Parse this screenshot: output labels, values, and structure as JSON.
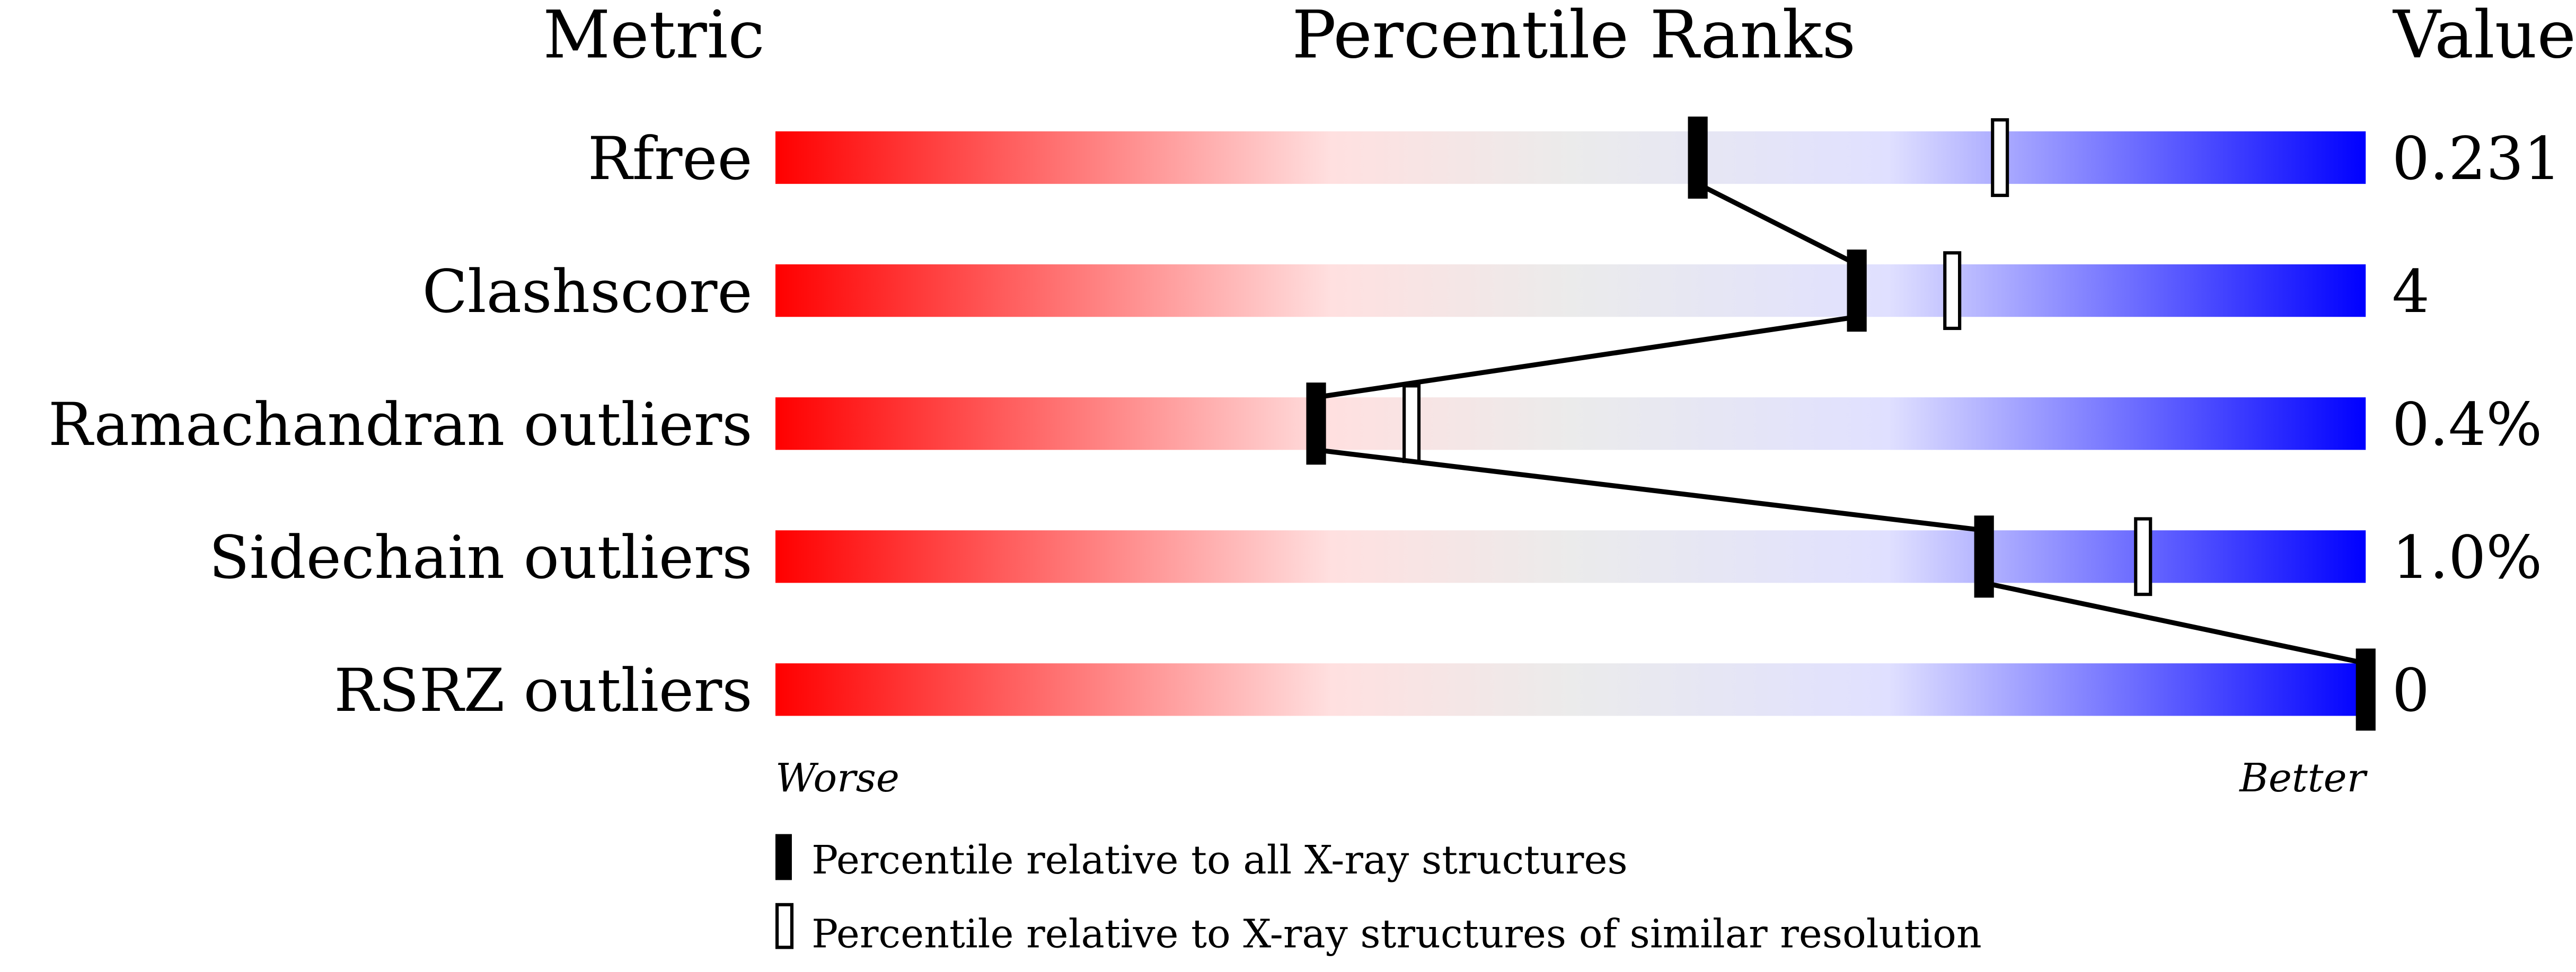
{
  "chart_data": {
    "type": "bar",
    "headers": {
      "metric": "Metric",
      "ranks": "Percentile Ranks",
      "value": "Value"
    },
    "xlim": [
      0,
      100
    ],
    "rows": [
      {
        "metric": "Rfree",
        "value": "0.231",
        "percentile_all": 58,
        "percentile_similar": 77
      },
      {
        "metric": "Clashscore",
        "value": "4",
        "percentile_all": 68,
        "percentile_similar": 74
      },
      {
        "metric": "Ramachandran outliers",
        "value": "0.4%",
        "percentile_all": 34,
        "percentile_similar": 40
      },
      {
        "metric": "Sidechain outliers",
        "value": "1.0%",
        "percentile_all": 76,
        "percentile_similar": 86
      },
      {
        "metric": "RSRZ outliers",
        "value": "0",
        "percentile_all": 100,
        "percentile_similar": null
      }
    ],
    "axis_left_label": "Worse",
    "axis_right_label": "Better",
    "legend": [
      {
        "marker": "filled",
        "label": "Percentile relative to all X-ray structures"
      },
      {
        "marker": "hollow",
        "label": "Percentile relative to X-ray structures of similar resolution"
      }
    ],
    "gradient_colors": [
      "#ff0000",
      "#ffe0e0",
      "#ebebeb",
      "#e0e0ff",
      "#0000ff"
    ]
  }
}
